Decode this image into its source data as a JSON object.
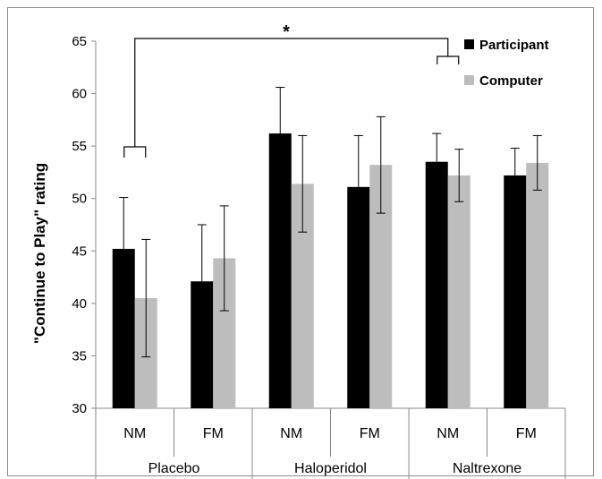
{
  "chart_data": {
    "type": "bar",
    "ylabel": "\"Continue to Play\" rating",
    "ylim": [
      30,
      65
    ],
    "yticks": [
      30,
      35,
      40,
      45,
      50,
      55,
      60,
      65
    ],
    "groups": [
      "Placebo",
      "Haloperidol",
      "Naltrexone"
    ],
    "categories": [
      "NM",
      "FM",
      "NM",
      "FM",
      "NM",
      "FM"
    ],
    "series": [
      {
        "name": "Participant",
        "color": "#000000",
        "values": [
          45.2,
          42.1,
          56.2,
          51.1,
          53.5,
          52.2
        ],
        "errors": [
          4.9,
          5.4,
          4.4,
          4.9,
          2.7,
          2.6
        ]
      },
      {
        "name": "Computer",
        "color": "#bdbdbd",
        "values": [
          40.5,
          44.3,
          51.4,
          53.2,
          52.2,
          53.4
        ],
        "errors": [
          5.6,
          5.0,
          4.6,
          4.6,
          2.5,
          2.6
        ]
      }
    ],
    "annotation": "*",
    "grid": false,
    "legend": "top-right"
  }
}
